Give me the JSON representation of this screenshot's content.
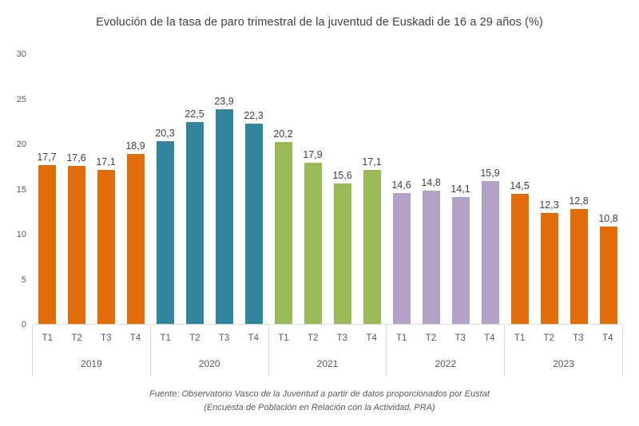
{
  "title": "Evolución de la tasa de paro trimestral de la juventud de Euskadi de 16 a 29 años (%)",
  "footer": {
    "line1": "Fuente: Observatorio Vasco de la Juventud a partir de datos proporcionados por Eustat",
    "line2": "(Encuesta de Población en Relación con la Actividad, PRA)"
  },
  "chart_data": {
    "type": "bar",
    "title": "Evolución de la tasa de paro trimestral de la juventud de Euskadi de 16 a 29 años (%)",
    "xlabel": "",
    "ylabel": "",
    "ylim": [
      0,
      30
    ],
    "yticks": [
      0,
      5,
      10,
      15,
      20,
      25,
      30
    ],
    "grid": false,
    "legend": "none",
    "quarter_labels": [
      "T1",
      "T2",
      "T3",
      "T4"
    ],
    "groups": [
      {
        "year": "2019",
        "color": "#E36C0A",
        "values": [
          17.7,
          17.6,
          17.1,
          18.9
        ],
        "labels": [
          "17,7",
          "17,6",
          "17,1",
          "18,9"
        ]
      },
      {
        "year": "2020",
        "color": "#31859C",
        "values": [
          20.3,
          22.5,
          23.9,
          22.3
        ],
        "labels": [
          "20,3",
          "22,5",
          "23,9",
          "22,3"
        ]
      },
      {
        "year": "2021",
        "color": "#9ABA58",
        "values": [
          20.2,
          17.9,
          15.6,
          17.1
        ],
        "labels": [
          "20,2",
          "17,9",
          "15,6",
          "17,1"
        ]
      },
      {
        "year": "2022",
        "color": "#B2A2C7",
        "values": [
          14.6,
          14.8,
          14.1,
          15.9
        ],
        "labels": [
          "14,6",
          "14,8",
          "14,1",
          "15,9"
        ]
      },
      {
        "year": "2023",
        "color": "#E36C0A",
        "values": [
          14.5,
          12.3,
          12.8,
          10.8
        ],
        "labels": [
          "14,5",
          "12,3",
          "12,8",
          "10,8"
        ]
      }
    ],
    "colors": {
      "title_text": "#404040",
      "data_label_text": "#404040",
      "axis_label_text": "#595959",
      "axis_line": "#d9d9d9",
      "background": "#ffffff"
    }
  }
}
